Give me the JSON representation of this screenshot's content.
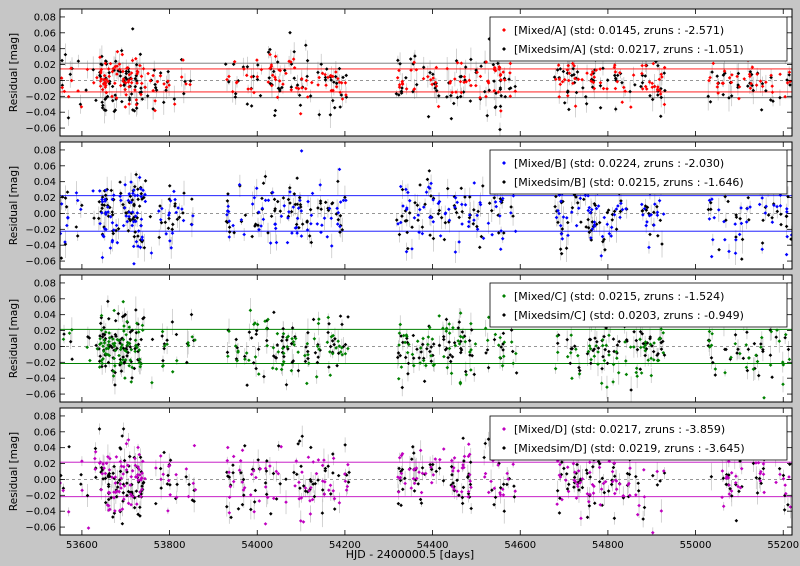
{
  "chart_data": {
    "type": "scatter",
    "xlabel": "HJD - 2400000.5 [days]",
    "xlim": [
      53550,
      55220
    ],
    "x_ticks": [
      53600,
      53800,
      54000,
      54200,
      54400,
      54600,
      54800,
      55000,
      55200
    ],
    "ylim": [
      0.09,
      -0.07
    ],
    "y_ticks": [
      -0.06,
      -0.04,
      -0.02,
      0.0,
      0.02,
      0.04,
      0.06,
      0.08
    ],
    "y_inverted": true,
    "legend_position": "top-right",
    "grid": false,
    "seasons": [
      [
        53550,
        53860
      ],
      [
        53930,
        54210
      ],
      [
        54320,
        54590
      ],
      [
        54680,
        54930
      ],
      [
        55030,
        55220
      ]
    ],
    "panels": [
      {
        "ylabel": "Residual [mag]",
        "std_band": 0.0145,
        "series": [
          {
            "label": "[Mixed/A] (std: 0.0145, zruns : -2.571)",
            "color": "#ff0000",
            "std": 0.0145,
            "zruns": -2.571
          },
          {
            "label": "[Mixedsim/A] (std: 0.0217, zruns : -1.051)",
            "color": "#000000",
            "std": 0.0217,
            "zruns": -1.051
          }
        ]
      },
      {
        "ylabel": "Residual [mag]",
        "std_band": 0.0224,
        "series": [
          {
            "label": "[Mixed/B] (std: 0.0224, zruns : -2.030)",
            "color": "#0000ff",
            "std": 0.0224,
            "zruns": -2.03
          },
          {
            "label": "[Mixedsim/B] (std: 0.0215, zruns : -1.646)",
            "color": "#000000",
            "std": 0.0215,
            "zruns": -1.646
          }
        ]
      },
      {
        "ylabel": "Residual [mag]",
        "std_band": 0.0215,
        "series": [
          {
            "label": "[Mixed/C] (std: 0.0215, zruns : -1.524)",
            "color": "#008000",
            "std": 0.0215,
            "zruns": -1.524
          },
          {
            "label": "[Mixedsim/C] (std: 0.0203, zruns : -0.949)",
            "color": "#000000",
            "std": 0.0203,
            "zruns": -0.949
          }
        ]
      },
      {
        "ylabel": "Residual [mag]",
        "std_band": 0.0217,
        "series": [
          {
            "label": "[Mixed/D] (std: 0.0217, zruns : -3.859)",
            "color": "#bf00bf",
            "std": 0.0217,
            "zruns": -3.859
          },
          {
            "label": "[Mixedsim/D] (std: 0.0219, zruns : -3.645)",
            "color": "#000000",
            "std": 0.0219,
            "zruns": -3.645
          }
        ]
      }
    ]
  }
}
